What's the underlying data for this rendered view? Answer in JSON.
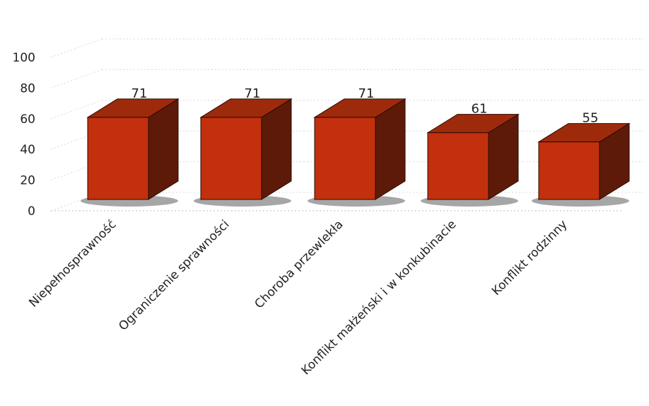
{
  "chart_data": {
    "type": "bar",
    "style": "3d-column",
    "title": "",
    "xlabel": "",
    "ylabel": "",
    "categories": [
      "Niepełnosprawność",
      "Ograniczenie sprawności",
      "Choroba przewlekła",
      "Konflikt małżeński i w konkubinacie",
      "Konflikt rodzinny"
    ],
    "values": [
      71,
      71,
      71,
      61,
      55
    ],
    "ylim": [
      0,
      100
    ],
    "yticks": [
      "0",
      "20",
      "40",
      "60",
      "80",
      "100"
    ],
    "grid": true,
    "legend": "none",
    "colors": {
      "bar_front": "#c2300d",
      "bar_top": "#9e2a0c",
      "bar_side": "#5e1a08",
      "outline": "#2a0a02",
      "grid": "#d8d8d8"
    }
  }
}
